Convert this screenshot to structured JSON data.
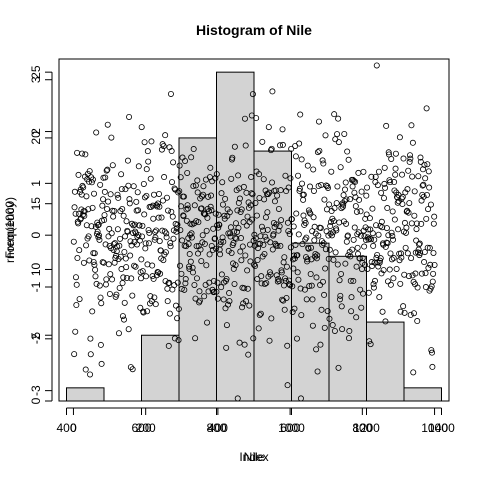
{
  "chart_data": [
    {
      "type": "bar",
      "title": "Histogram of Nile",
      "xlabel": "Nile",
      "ylabel": "Frequency",
      "bins": [
        [
          400,
          500
        ],
        [
          500,
          600
        ],
        [
          600,
          700
        ],
        [
          700,
          800
        ],
        [
          800,
          900
        ],
        [
          900,
          1000
        ],
        [
          1000,
          1100
        ],
        [
          1100,
          1200
        ],
        [
          1200,
          1300
        ],
        [
          1300,
          1400
        ]
      ],
      "values": [
        1,
        0,
        5,
        20,
        25,
        19,
        12,
        11,
        6,
        1
      ],
      "xlim": [
        380,
        1420
      ],
      "ylim": [
        0,
        26
      ],
      "xticks": [
        "400",
        "600",
        "800",
        "1000",
        "1200",
        "1400"
      ],
      "yticks": [
        "0",
        "5",
        "10",
        "15",
        "20",
        "25"
      ],
      "bar_color": "#d3d3d3"
    },
    {
      "type": "scatter",
      "title": "",
      "xlabel": "Index",
      "ylabel": "rnorm(1000)",
      "x_range": [
        1,
        1000
      ],
      "n": 1000,
      "xlim": [
        -40,
        1040
      ],
      "ylim": [
        -3.2,
        3.4
      ],
      "xticks": [
        "0",
        "200",
        "400",
        "600",
        "800",
        "1000"
      ],
      "yticks": [
        "-3",
        "-2",
        "-1",
        "0",
        "1",
        "2",
        "3"
      ],
      "marker": "open-circle"
    }
  ]
}
